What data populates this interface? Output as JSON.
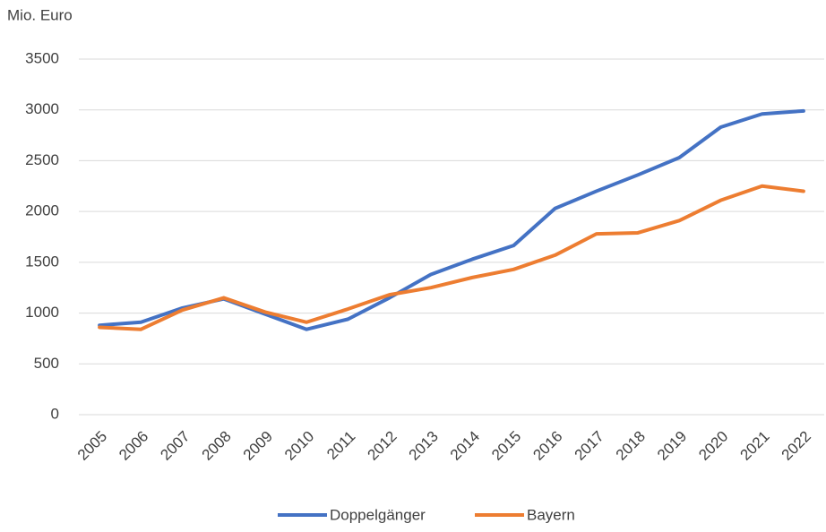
{
  "chart_data": {
    "type": "line",
    "title": "Mio. Euro",
    "categories": [
      "2005",
      "2006",
      "2007",
      "2008",
      "2009",
      "2010",
      "2011",
      "2012",
      "2013",
      "2014",
      "2015",
      "2016",
      "2017",
      "2018",
      "2019",
      "2020",
      "2021",
      "2022"
    ],
    "series": [
      {
        "name": "Doppelgänger",
        "color": "#4472c4",
        "values": [
          880,
          910,
          1050,
          1140,
          990,
          840,
          940,
          1150,
          1380,
          1530,
          1665,
          2030,
          2200,
          2360,
          2530,
          2830,
          2960,
          2990
        ]
      },
      {
        "name": "Bayern",
        "color": "#ed7d31",
        "values": [
          860,
          840,
          1030,
          1150,
          1010,
          910,
          1040,
          1180,
          1250,
          1350,
          1430,
          1570,
          1780,
          1790,
          1910,
          2110,
          2250,
          2200
        ]
      }
    ],
    "ylim": [
      0,
      3500
    ],
    "yticks": [
      0,
      500,
      1000,
      1500,
      2000,
      2500,
      3000,
      3500
    ],
    "grid": true,
    "legend": "bottom"
  }
}
